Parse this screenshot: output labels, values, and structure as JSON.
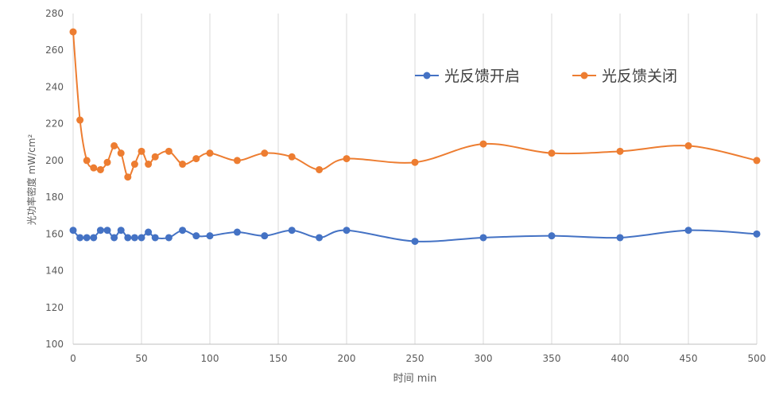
{
  "chart_data": {
    "type": "line",
    "title": "",
    "xlabel": "时间 min",
    "ylabel": "光功率密度 mW/cm²",
    "xlim": [
      0,
      500
    ],
    "ylim": [
      100,
      280
    ],
    "x_ticks": [
      0,
      50,
      100,
      150,
      200,
      250,
      300,
      350,
      400,
      450,
      500
    ],
    "y_ticks": [
      100,
      120,
      140,
      160,
      180,
      200,
      220,
      240,
      260,
      280
    ],
    "grid": "vertical",
    "legend_position": "top-right",
    "smooth": true,
    "series": [
      {
        "name": "光反馈开启",
        "color": "#4472C4",
        "x": [
          0,
          5,
          10,
          15,
          20,
          25,
          30,
          35,
          40,
          45,
          50,
          55,
          60,
          70,
          80,
          90,
          100,
          120,
          140,
          160,
          180,
          200,
          250,
          300,
          350,
          400,
          450,
          500
        ],
        "y": [
          162,
          158,
          158,
          158,
          162,
          162,
          158,
          162,
          158,
          158,
          158,
          161,
          158,
          158,
          162,
          159,
          159,
          161,
          159,
          162,
          158,
          162,
          156,
          158,
          159,
          158,
          162,
          160
        ]
      },
      {
        "name": "光反馈关闭",
        "color": "#ED7D31",
        "x": [
          0,
          5,
          10,
          15,
          20,
          25,
          30,
          35,
          40,
          45,
          50,
          55,
          60,
          70,
          80,
          90,
          100,
          120,
          140,
          160,
          180,
          200,
          250,
          300,
          350,
          400,
          450,
          500
        ],
        "y": [
          270,
          222,
          200,
          196,
          195,
          199,
          208,
          204,
          191,
          198,
          205,
          198,
          202,
          205,
          198,
          201,
          204,
          200,
          204,
          202,
          195,
          201,
          199,
          209,
          204,
          205,
          208,
          200
        ]
      }
    ]
  }
}
